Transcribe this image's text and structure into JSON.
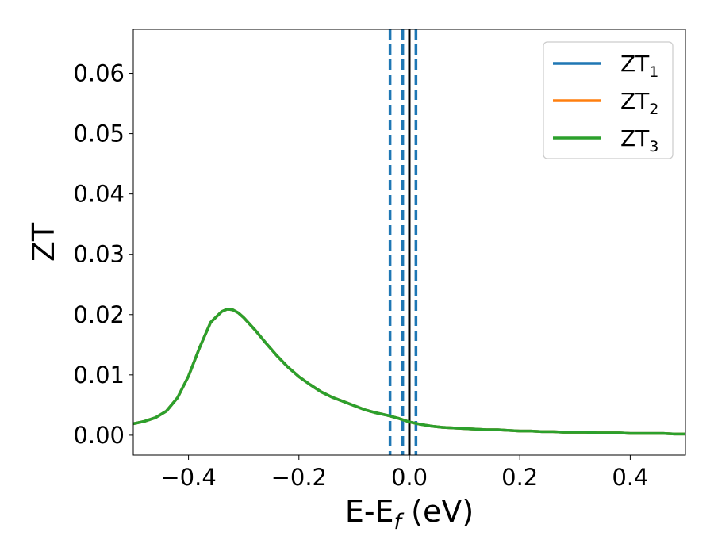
{
  "chart_data": {
    "type": "line",
    "title": "",
    "xlabel": "E-E",
    "xlabel_sub": "f",
    "xlabel_unit": " (eV)",
    "ylabel": "ZT",
    "xlim": [
      -0.5,
      0.5
    ],
    "ylim": [
      -0.0033,
      0.0673
    ],
    "xticks": [
      -0.4,
      -0.2,
      0.0,
      0.2,
      0.4
    ],
    "xtick_labels": [
      "−0.4",
      "−0.2",
      "0.0",
      "0.2",
      "0.4"
    ],
    "yticks": [
      0.0,
      0.01,
      0.02,
      0.03,
      0.04,
      0.05,
      0.06
    ],
    "ytick_labels": [
      "0.00",
      "0.01",
      "0.02",
      "0.03",
      "0.04",
      "0.05",
      "0.06"
    ],
    "grid": false,
    "legend_position": "top-right",
    "x": [
      -0.5,
      -0.48,
      -0.46,
      -0.44,
      -0.42,
      -0.4,
      -0.38,
      -0.36,
      -0.34,
      -0.33,
      -0.32,
      -0.31,
      -0.3,
      -0.28,
      -0.26,
      -0.24,
      -0.22,
      -0.2,
      -0.18,
      -0.16,
      -0.14,
      -0.12,
      -0.1,
      -0.08,
      -0.06,
      -0.04,
      -0.02,
      0.0,
      0.02,
      0.04,
      0.06,
      0.08,
      0.1,
      0.12,
      0.14,
      0.16,
      0.18,
      0.2,
      0.22,
      0.24,
      0.26,
      0.28,
      0.3,
      0.32,
      0.34,
      0.36,
      0.38,
      0.4,
      0.42,
      0.44,
      0.46,
      0.48,
      0.5
    ],
    "series": [
      {
        "name": "ZT",
        "name_sub": "1",
        "color": "#1f77b4",
        "values": [
          0.0019,
          0.0023,
          0.0029,
          0.004,
          0.0062,
          0.0098,
          0.0145,
          0.0187,
          0.0205,
          0.0209,
          0.0208,
          0.0203,
          0.0195,
          0.0175,
          0.0153,
          0.0132,
          0.0113,
          0.0097,
          0.0084,
          0.0072,
          0.0063,
          0.0056,
          0.0049,
          0.0042,
          0.0037,
          0.0033,
          0.0028,
          0.0022,
          0.0018,
          0.0015,
          0.0013,
          0.0012,
          0.0011,
          0.001,
          0.0009,
          0.0009,
          0.0008,
          0.0007,
          0.0007,
          0.0006,
          0.0006,
          0.0005,
          0.0005,
          0.0005,
          0.0004,
          0.0004,
          0.0004,
          0.0003,
          0.0003,
          0.0003,
          0.0003,
          0.0002,
          0.0002
        ]
      },
      {
        "name": "ZT",
        "name_sub": "2",
        "color": "#ff7f0e",
        "values": [
          0.0019,
          0.0023,
          0.0029,
          0.004,
          0.0062,
          0.0098,
          0.0145,
          0.0187,
          0.0205,
          0.0209,
          0.0208,
          0.0203,
          0.0195,
          0.0175,
          0.0153,
          0.0132,
          0.0113,
          0.0097,
          0.0084,
          0.0072,
          0.0063,
          0.0056,
          0.0049,
          0.0042,
          0.0037,
          0.0033,
          0.0028,
          0.0022,
          0.0018,
          0.0015,
          0.0013,
          0.0012,
          0.0011,
          0.001,
          0.0009,
          0.0009,
          0.0008,
          0.0007,
          0.0007,
          0.0006,
          0.0006,
          0.0005,
          0.0005,
          0.0005,
          0.0004,
          0.0004,
          0.0004,
          0.0003,
          0.0003,
          0.0003,
          0.0003,
          0.0002,
          0.0002
        ]
      },
      {
        "name": "ZT",
        "name_sub": "3",
        "color": "#2ca02c",
        "values": [
          0.0019,
          0.0023,
          0.0029,
          0.004,
          0.0062,
          0.0098,
          0.0145,
          0.0187,
          0.0205,
          0.0209,
          0.0208,
          0.0203,
          0.0195,
          0.0175,
          0.0153,
          0.0132,
          0.0113,
          0.0097,
          0.0084,
          0.0072,
          0.0063,
          0.0056,
          0.0049,
          0.0042,
          0.0037,
          0.0033,
          0.0028,
          0.0022,
          0.0018,
          0.0015,
          0.0013,
          0.0012,
          0.0011,
          0.001,
          0.0009,
          0.0009,
          0.0008,
          0.0007,
          0.0007,
          0.0006,
          0.0006,
          0.0005,
          0.0005,
          0.0005,
          0.0004,
          0.0004,
          0.0004,
          0.0003,
          0.0003,
          0.0003,
          0.0003,
          0.0002,
          0.0002
        ]
      }
    ],
    "vertical_lines": [
      {
        "x": -0.035,
        "style": "dashed",
        "color": "#1f77b4"
      },
      {
        "x": -0.012,
        "style": "dashed",
        "color": "#1f77b4"
      },
      {
        "x": 0.012,
        "style": "dashed",
        "color": "#1f77b4"
      },
      {
        "x": 0.0,
        "style": "solid",
        "color": "#000000"
      }
    ]
  }
}
